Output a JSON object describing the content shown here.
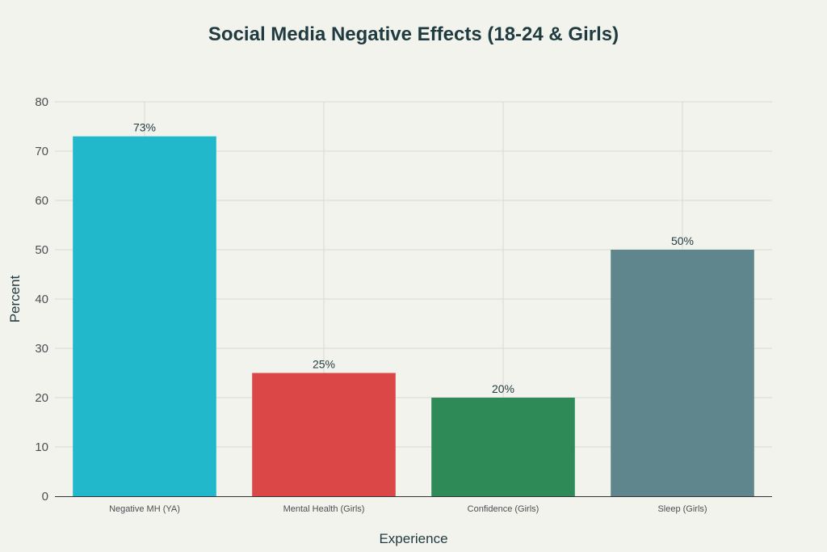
{
  "chart_data": {
    "type": "bar",
    "title": "Social Media Negative Effects (18-24 & Girls)",
    "xlabel": "Experience",
    "ylabel": "Percent",
    "ylim": [
      0,
      80
    ],
    "yticks": [
      0,
      10,
      20,
      30,
      40,
      50,
      60,
      70,
      80
    ],
    "grid": true,
    "categories": [
      "Negative MH (YA)",
      "Mental Health (Girls)",
      "Confidence (Girls)",
      "Sleep (Girls)"
    ],
    "values": [
      73,
      25,
      20,
      50
    ],
    "data_labels": [
      "73%",
      "25%",
      "20%",
      "50%"
    ],
    "colors": [
      "#21b8cc",
      "#db4646",
      "#2e8b57",
      "#5e868c"
    ]
  }
}
